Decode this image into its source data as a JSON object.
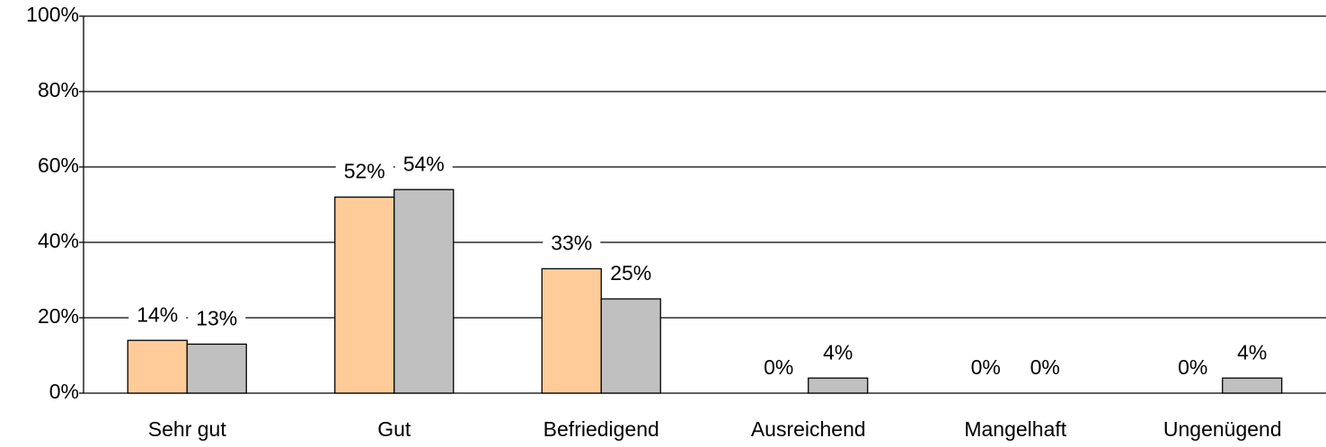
{
  "chart_data": {
    "type": "bar",
    "categories": [
      "Sehr gut",
      "Gut",
      "Befriedigend",
      "Ausreichend",
      "Mangelhaft",
      "Ungenügend"
    ],
    "series": [
      {
        "color": "#ffcc99",
        "values": [
          14,
          52,
          33,
          0,
          0,
          0
        ],
        "value_labels": [
          "14%",
          "52%",
          "33%",
          "0%",
          "0%",
          "0%"
        ]
      },
      {
        "color": "#c0c0c0",
        "values": [
          13,
          54,
          25,
          4,
          0,
          4
        ],
        "value_labels": [
          "13%",
          "54%",
          "25%",
          "4%",
          "0%",
          "4%"
        ]
      }
    ],
    "ylim": [
      0,
      100
    ],
    "yticks": [
      {
        "value": 0,
        "label": "0%"
      },
      {
        "value": 20,
        "label": "20%"
      },
      {
        "value": 40,
        "label": "40%"
      },
      {
        "value": 60,
        "label": "60%"
      },
      {
        "value": 80,
        "label": "80%"
      },
      {
        "value": 100,
        "label": "100%"
      }
    ],
    "grid": true
  }
}
